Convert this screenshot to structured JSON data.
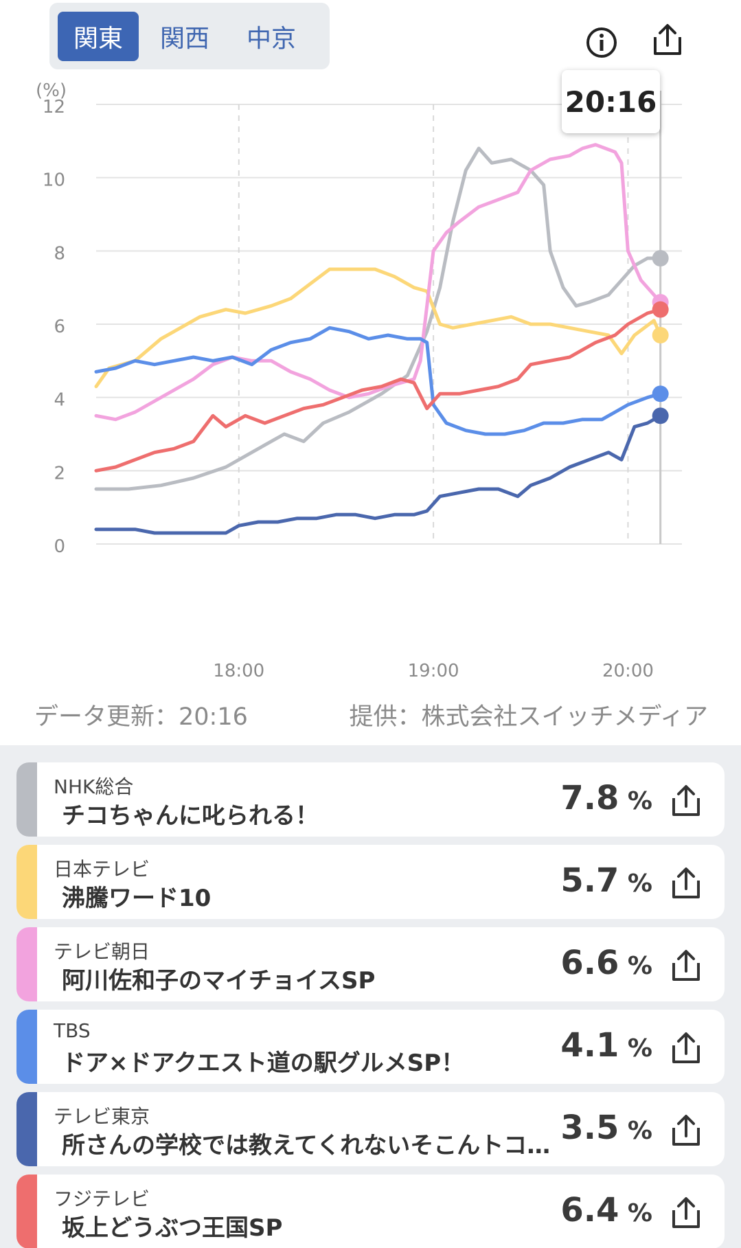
{
  "regions": {
    "tabs": [
      {
        "label": "関東",
        "active": true
      },
      {
        "label": "関西",
        "active": false
      },
      {
        "label": "中京",
        "active": false
      }
    ]
  },
  "header": {
    "info_icon": "info-icon",
    "share_icon": "share-icon"
  },
  "tooltip": {
    "time": "20:16"
  },
  "footer": {
    "update": "データ更新：20:16",
    "provider": "提供：株式会社スイッチメディア"
  },
  "chart_data": {
    "type": "line",
    "ylabel": "(%)",
    "ylim": [
      0,
      12
    ],
    "yticks": [
      "0",
      "2",
      "4",
      "6",
      "8",
      "10",
      "12"
    ],
    "xticks": [
      "18:00",
      "19:00",
      "20:00"
    ],
    "xrange_minutes": [
      1036,
      1216
    ],
    "cursor_time": "20:16",
    "grid": true,
    "series": [
      {
        "id": "nhk",
        "color": "#b9bcc2",
        "points": [
          [
            1036,
            1.5
          ],
          [
            1046,
            1.5
          ],
          [
            1056,
            1.6
          ],
          [
            1066,
            1.8
          ],
          [
            1076,
            2.1
          ],
          [
            1086,
            2.6
          ],
          [
            1094,
            3.0
          ],
          [
            1100,
            2.8
          ],
          [
            1106,
            3.3
          ],
          [
            1114,
            3.6
          ],
          [
            1124,
            4.1
          ],
          [
            1132,
            4.6
          ],
          [
            1138,
            5.8
          ],
          [
            1142,
            7.0
          ],
          [
            1146,
            8.8
          ],
          [
            1150,
            10.2
          ],
          [
            1154,
            10.8
          ],
          [
            1158,
            10.4
          ],
          [
            1164,
            10.5
          ],
          [
            1170,
            10.2
          ],
          [
            1174,
            9.8
          ],
          [
            1176,
            8.0
          ],
          [
            1180,
            7.0
          ],
          [
            1184,
            6.5
          ],
          [
            1188,
            6.6
          ],
          [
            1194,
            6.8
          ],
          [
            1198,
            7.2
          ],
          [
            1202,
            7.6
          ],
          [
            1206,
            7.8
          ],
          [
            1210,
            7.8
          ]
        ],
        "last": 7.8
      },
      {
        "id": "ntv",
        "color": "#fcd778",
        "points": [
          [
            1036,
            4.3
          ],
          [
            1040,
            4.8
          ],
          [
            1048,
            5.0
          ],
          [
            1056,
            5.6
          ],
          [
            1062,
            5.9
          ],
          [
            1068,
            6.2
          ],
          [
            1076,
            6.4
          ],
          [
            1082,
            6.3
          ],
          [
            1090,
            6.5
          ],
          [
            1096,
            6.7
          ],
          [
            1102,
            7.1
          ],
          [
            1108,
            7.5
          ],
          [
            1114,
            7.5
          ],
          [
            1122,
            7.5
          ],
          [
            1128,
            7.3
          ],
          [
            1134,
            7.0
          ],
          [
            1138,
            6.9
          ],
          [
            1142,
            6.0
          ],
          [
            1146,
            5.9
          ],
          [
            1152,
            6.0
          ],
          [
            1158,
            6.1
          ],
          [
            1164,
            6.2
          ],
          [
            1170,
            6.0
          ],
          [
            1176,
            6.0
          ],
          [
            1182,
            5.9
          ],
          [
            1188,
            5.8
          ],
          [
            1194,
            5.7
          ],
          [
            1198,
            5.2
          ],
          [
            1202,
            5.7
          ],
          [
            1208,
            6.1
          ],
          [
            1210,
            5.7
          ]
        ],
        "last": 5.7
      },
      {
        "id": "ex",
        "color": "#f2a3de",
        "points": [
          [
            1036,
            3.5
          ],
          [
            1042,
            3.4
          ],
          [
            1048,
            3.6
          ],
          [
            1054,
            3.9
          ],
          [
            1060,
            4.2
          ],
          [
            1066,
            4.5
          ],
          [
            1072,
            4.9
          ],
          [
            1078,
            5.1
          ],
          [
            1084,
            5.0
          ],
          [
            1090,
            5.0
          ],
          [
            1096,
            4.7
          ],
          [
            1102,
            4.5
          ],
          [
            1108,
            4.2
          ],
          [
            1114,
            4.0
          ],
          [
            1120,
            4.1
          ],
          [
            1126,
            4.3
          ],
          [
            1130,
            4.4
          ],
          [
            1134,
            4.5
          ],
          [
            1136,
            5.0
          ],
          [
            1138,
            6.5
          ],
          [
            1140,
            8.0
          ],
          [
            1144,
            8.5
          ],
          [
            1148,
            8.8
          ],
          [
            1154,
            9.2
          ],
          [
            1160,
            9.4
          ],
          [
            1166,
            9.6
          ],
          [
            1170,
            10.2
          ],
          [
            1176,
            10.5
          ],
          [
            1182,
            10.6
          ],
          [
            1186,
            10.8
          ],
          [
            1190,
            10.9
          ],
          [
            1196,
            10.7
          ],
          [
            1198,
            10.4
          ],
          [
            1200,
            8.0
          ],
          [
            1204,
            7.2
          ],
          [
            1210,
            6.6
          ]
        ],
        "last": 6.6
      },
      {
        "id": "tbs",
        "color": "#5b8ee8",
        "points": [
          [
            1036,
            4.7
          ],
          [
            1042,
            4.8
          ],
          [
            1048,
            5.0
          ],
          [
            1054,
            4.9
          ],
          [
            1060,
            5.0
          ],
          [
            1066,
            5.1
          ],
          [
            1072,
            5.0
          ],
          [
            1078,
            5.1
          ],
          [
            1084,
            4.9
          ],
          [
            1090,
            5.3
          ],
          [
            1096,
            5.5
          ],
          [
            1102,
            5.6
          ],
          [
            1108,
            5.9
          ],
          [
            1114,
            5.8
          ],
          [
            1120,
            5.6
          ],
          [
            1126,
            5.7
          ],
          [
            1132,
            5.6
          ],
          [
            1136,
            5.6
          ],
          [
            1138,
            5.5
          ],
          [
            1140,
            3.8
          ],
          [
            1144,
            3.3
          ],
          [
            1150,
            3.1
          ],
          [
            1156,
            3.0
          ],
          [
            1162,
            3.0
          ],
          [
            1168,
            3.1
          ],
          [
            1174,
            3.3
          ],
          [
            1180,
            3.3
          ],
          [
            1186,
            3.4
          ],
          [
            1192,
            3.4
          ],
          [
            1196,
            3.6
          ],
          [
            1200,
            3.8
          ],
          [
            1206,
            4.0
          ],
          [
            1210,
            4.1
          ]
        ],
        "last": 4.1
      },
      {
        "id": "tx",
        "color": "#4a67ad",
        "points": [
          [
            1036,
            0.4
          ],
          [
            1042,
            0.4
          ],
          [
            1048,
            0.4
          ],
          [
            1054,
            0.3
          ],
          [
            1060,
            0.3
          ],
          [
            1066,
            0.3
          ],
          [
            1072,
            0.3
          ],
          [
            1076,
            0.3
          ],
          [
            1080,
            0.5
          ],
          [
            1086,
            0.6
          ],
          [
            1092,
            0.6
          ],
          [
            1098,
            0.7
          ],
          [
            1104,
            0.7
          ],
          [
            1110,
            0.8
          ],
          [
            1116,
            0.8
          ],
          [
            1122,
            0.7
          ],
          [
            1128,
            0.8
          ],
          [
            1134,
            0.8
          ],
          [
            1138,
            0.9
          ],
          [
            1142,
            1.3
          ],
          [
            1148,
            1.4
          ],
          [
            1154,
            1.5
          ],
          [
            1160,
            1.5
          ],
          [
            1166,
            1.3
          ],
          [
            1170,
            1.6
          ],
          [
            1176,
            1.8
          ],
          [
            1182,
            2.1
          ],
          [
            1188,
            2.3
          ],
          [
            1194,
            2.5
          ],
          [
            1198,
            2.3
          ],
          [
            1202,
            3.2
          ],
          [
            1206,
            3.3
          ],
          [
            1210,
            3.5
          ]
        ],
        "last": 3.5
      },
      {
        "id": "cx",
        "color": "#ee6e6e",
        "points": [
          [
            1036,
            2.0
          ],
          [
            1042,
            2.1
          ],
          [
            1048,
            2.3
          ],
          [
            1054,
            2.5
          ],
          [
            1060,
            2.6
          ],
          [
            1066,
            2.8
          ],
          [
            1072,
            3.5
          ],
          [
            1076,
            3.2
          ],
          [
            1082,
            3.5
          ],
          [
            1088,
            3.3
          ],
          [
            1094,
            3.5
          ],
          [
            1100,
            3.7
          ],
          [
            1106,
            3.8
          ],
          [
            1112,
            4.0
          ],
          [
            1118,
            4.2
          ],
          [
            1124,
            4.3
          ],
          [
            1130,
            4.5
          ],
          [
            1134,
            4.4
          ],
          [
            1138,
            3.7
          ],
          [
            1142,
            4.1
          ],
          [
            1148,
            4.1
          ],
          [
            1154,
            4.2
          ],
          [
            1160,
            4.3
          ],
          [
            1166,
            4.5
          ],
          [
            1170,
            4.9
          ],
          [
            1176,
            5.0
          ],
          [
            1182,
            5.1
          ],
          [
            1186,
            5.3
          ],
          [
            1190,
            5.5
          ],
          [
            1196,
            5.7
          ],
          [
            1200,
            6.0
          ],
          [
            1206,
            6.3
          ],
          [
            1210,
            6.4
          ]
        ],
        "last": 6.4
      }
    ]
  },
  "channels": [
    {
      "channel": "NHK総合",
      "program": "チコちゃんに叱られる！",
      "rating": "7.8",
      "unit": "%",
      "color": "#b9bcc2"
    },
    {
      "channel": "日本テレビ",
      "program": "沸騰ワード10",
      "rating": "5.7",
      "unit": "%",
      "color": "#fcd778"
    },
    {
      "channel": "テレビ朝日",
      "program": "阿川佐和子のマイチョイスSP",
      "rating": "6.6",
      "unit": "%",
      "color": "#f2a3de"
    },
    {
      "channel": "TBS",
      "program": "ドア×ドアクエスト道の駅グルメSP！",
      "rating": "4.1",
      "unit": "%",
      "color": "#5b8ee8"
    },
    {
      "channel": "テレビ東京",
      "program": "所さんの学校では教えてくれないそこんトコロ！",
      "rating": "3.5",
      "unit": "%",
      "color": "#4a67ad"
    },
    {
      "channel": "フジテレビ",
      "program": "坂上どうぶつ王国SP",
      "rating": "6.4",
      "unit": "%",
      "color": "#ee6e6e"
    }
  ]
}
